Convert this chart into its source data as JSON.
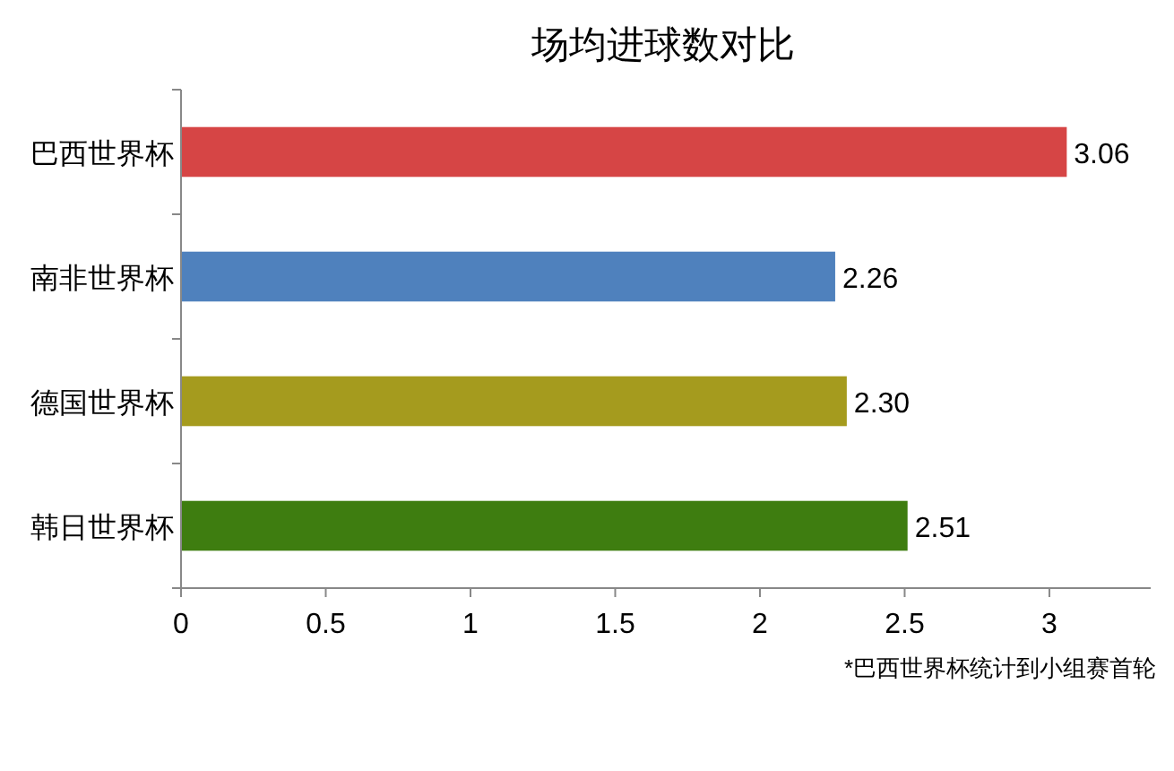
{
  "chart_data": {
    "type": "bar",
    "orientation": "horizontal",
    "title": "场均进球数对比",
    "categories": [
      "巴西世界杯",
      "南非世界杯",
      "德国世界杯",
      "韩日世界杯"
    ],
    "values": [
      3.06,
      2.26,
      2.3,
      2.51
    ],
    "value_labels": [
      "3.06",
      "2.26",
      "2.30",
      "2.51"
    ],
    "colors": [
      "#d64545",
      "#4f81bd",
      "#a59b1e",
      "#3e7d10"
    ],
    "xlim": [
      0,
      3.35
    ],
    "xticks": [
      0,
      0.5,
      1,
      1.5,
      2,
      2.5,
      3
    ],
    "grid": false,
    "annotations": [
      "*巴西世界杯统计到小组赛首轮"
    ]
  }
}
